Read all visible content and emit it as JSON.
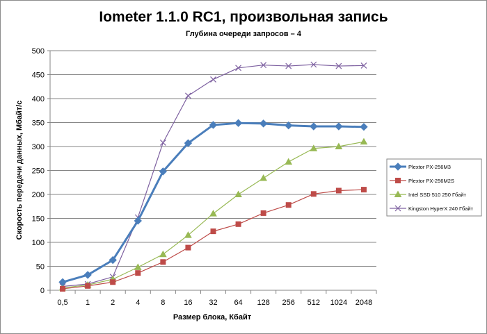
{
  "chart_data": {
    "type": "line",
    "title": "Iometer 1.1.0 RC1, произвольная запись",
    "subtitle": "Глубина очереди запросов – 4",
    "xlabel": "Размер блока, Кбайт",
    "ylabel": "Скорость передачи данных, Мбайт/с",
    "categories": [
      "0,5",
      "1",
      "2",
      "4",
      "8",
      "16",
      "32",
      "64",
      "128",
      "256",
      "512",
      "1024",
      "2048"
    ],
    "ylim": [
      0,
      500
    ],
    "yticks": [
      0,
      50,
      100,
      150,
      200,
      250,
      300,
      350,
      400,
      450,
      500
    ],
    "grid": true,
    "legend_position": "right",
    "series": [
      {
        "name": "Plextor PX-256M3",
        "color": "#4a7ebb",
        "marker": "diamond",
        "values": [
          17,
          32,
          63,
          145,
          248,
          307,
          345,
          349,
          348,
          344,
          342,
          342,
          341
        ]
      },
      {
        "name": "Plextor PX-256M2S",
        "color": "#be4b48",
        "marker": "square",
        "values": [
          3,
          9,
          17,
          36,
          59,
          89,
          123,
          138,
          161,
          178,
          201,
          208,
          210
        ]
      },
      {
        "name": "Intel SSD 510 250 Гбайт",
        "color": "#98b954",
        "marker": "triangle",
        "values": [
          5,
          11,
          23,
          48,
          75,
          115,
          160,
          200,
          234,
          268,
          296,
          300,
          310
        ]
      },
      {
        "name": "Kingston HyperX 240 Гбайт",
        "color": "#7d60a0",
        "marker": "x",
        "values": [
          8,
          13,
          28,
          152,
          308,
          406,
          440,
          464,
          470,
          468,
          471,
          468,
          469
        ]
      }
    ]
  }
}
